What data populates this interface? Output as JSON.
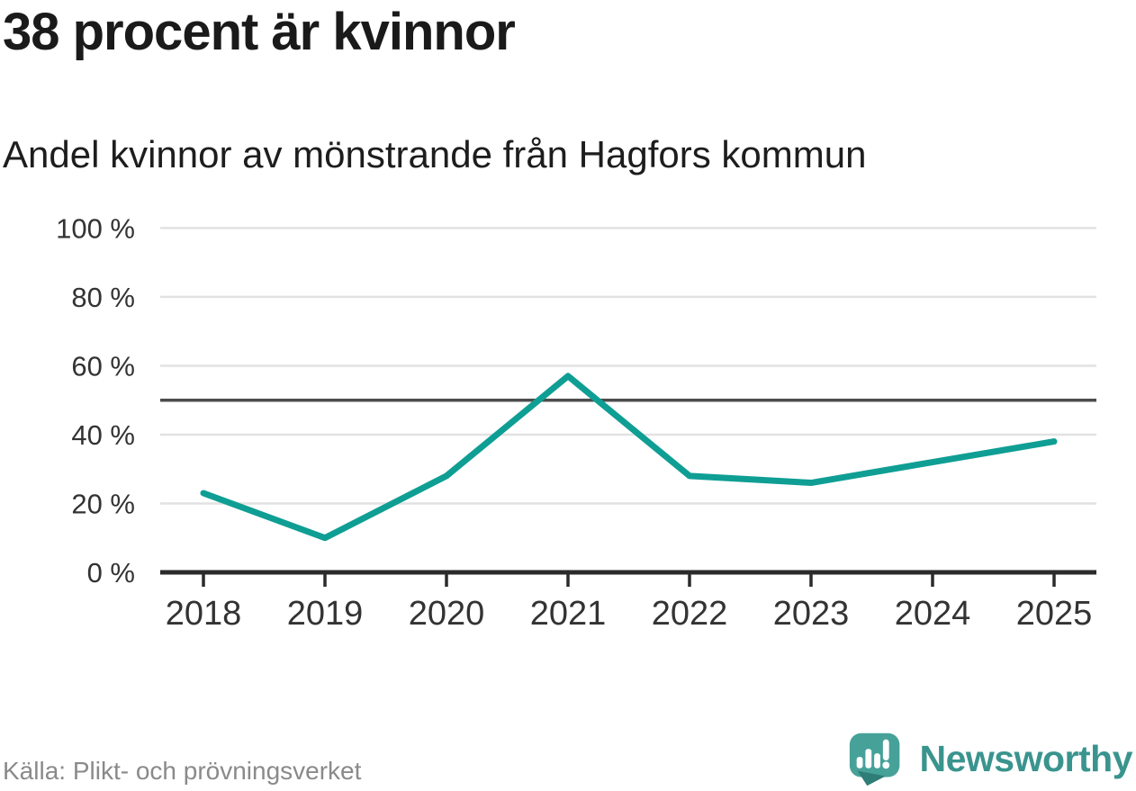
{
  "header": {
    "title": "38 procent är kvinnor",
    "subtitle": "Andel kvinnor av mönstrande från Hagfors kommun"
  },
  "chart_data": {
    "type": "line",
    "title": "38 procent är kvinnor",
    "subtitle": "Andel kvinnor av mönstrande från Hagfors kommun",
    "categories": [
      "2018",
      "2019",
      "2020",
      "2021",
      "2022",
      "2023",
      "2024",
      "2025"
    ],
    "series": [
      {
        "name": "Andel kvinnor av mönstrande",
        "values": [
          23,
          10,
          28,
          57,
          28,
          26,
          32,
          38
        ]
      }
    ],
    "unit": "%",
    "ylim": [
      0,
      100
    ],
    "yticks": [
      0,
      20,
      40,
      60,
      80,
      100
    ],
    "ytick_suffix": " %",
    "reference_line": 50,
    "grid": true,
    "legend": "none",
    "line_color": "#0f9e94"
  },
  "footer": {
    "source": "Källa: Plikt- och prövningsverket",
    "brand": "Newsworthy"
  },
  "colors": {
    "accent_teal": "#0f9e94",
    "brand_teal": "#3a948e",
    "logo_bubble": "#46a199",
    "logo_bubble_dark": "#2e7d77",
    "grid": "#e2e2e2",
    "reference": "#4d4d4d",
    "axis": "#2b2b2b",
    "text_dark": "#1a1a1a",
    "tick_label": "#333333",
    "source_text": "#8a8a8a"
  }
}
